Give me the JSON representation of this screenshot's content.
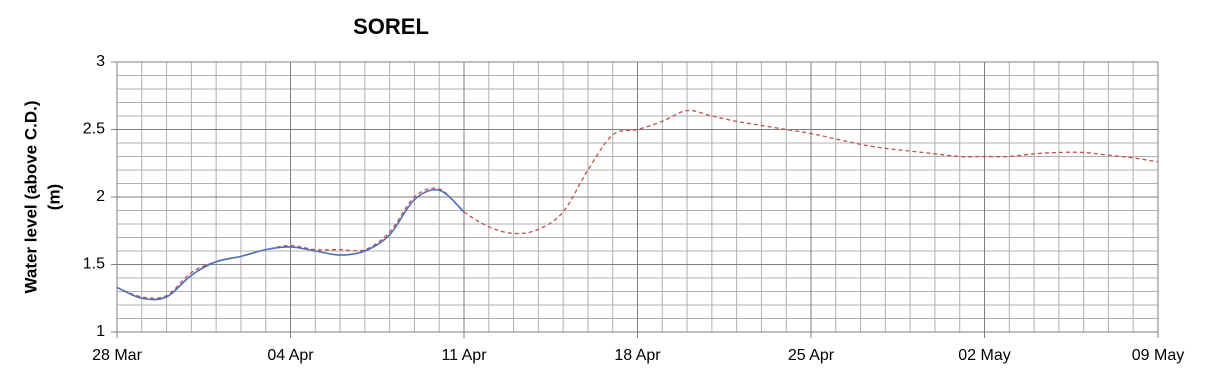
{
  "chart_data": {
    "type": "line",
    "title": "SOREL",
    "y_label": [
      "Water level (above C.D.)",
      "(m)"
    ],
    "x": [
      0,
      1,
      2,
      3,
      4,
      5,
      6,
      7,
      8,
      9,
      10,
      11,
      12,
      13,
      14,
      15,
      16,
      17,
      18,
      19,
      20,
      21,
      22,
      23,
      24,
      25,
      26,
      27,
      28,
      29,
      30,
      31,
      32,
      33,
      34,
      35,
      36,
      37,
      38,
      39,
      40,
      41,
      42
    ],
    "xlim": [
      0,
      42
    ],
    "xticks": [
      {
        "value": 0,
        "label": "28 Mar"
      },
      {
        "value": 7,
        "label": "04 Apr"
      },
      {
        "value": 14,
        "label": "11 Apr"
      },
      {
        "value": 21,
        "label": "18 Apr"
      },
      {
        "value": 28,
        "label": "25 Apr"
      },
      {
        "value": 35,
        "label": "02 May"
      },
      {
        "value": 42,
        "label": "09 May"
      }
    ],
    "ylim": [
      1,
      3
    ],
    "yticks": [
      1,
      1.5,
      2,
      2.5,
      3
    ],
    "grid": true,
    "minor_grid": true,
    "series": [
      {
        "color": "#c0504d",
        "dashed": true,
        "values": [
          1.33,
          1.26,
          1.27,
          1.44,
          1.52,
          1.56,
          1.61,
          1.64,
          1.61,
          1.61,
          1.61,
          1.74,
          2.0,
          2.06,
          1.89,
          1.78,
          1.73,
          1.76,
          1.89,
          2.2,
          2.46,
          2.5,
          2.56,
          2.64,
          2.6,
          2.56,
          2.53,
          2.5,
          2.47,
          2.43,
          2.39,
          2.36,
          2.34,
          2.32,
          2.3,
          2.3,
          2.3,
          2.32,
          2.33,
          2.33,
          2.31,
          2.29,
          2.26
        ]
      },
      {
        "color": "#4f6fb8",
        "dashed": false,
        "values": [
          1.33,
          1.25,
          1.26,
          1.42,
          1.52,
          1.56,
          1.61,
          1.63,
          1.6,
          1.57,
          1.6,
          1.72,
          1.98,
          2.05,
          1.89,
          null,
          null,
          null,
          null,
          null,
          null,
          null,
          null,
          null,
          null,
          null,
          null,
          null,
          null,
          null,
          null,
          null,
          null,
          null,
          null,
          null,
          null,
          null,
          null,
          null,
          null,
          null,
          null
        ]
      }
    ]
  }
}
